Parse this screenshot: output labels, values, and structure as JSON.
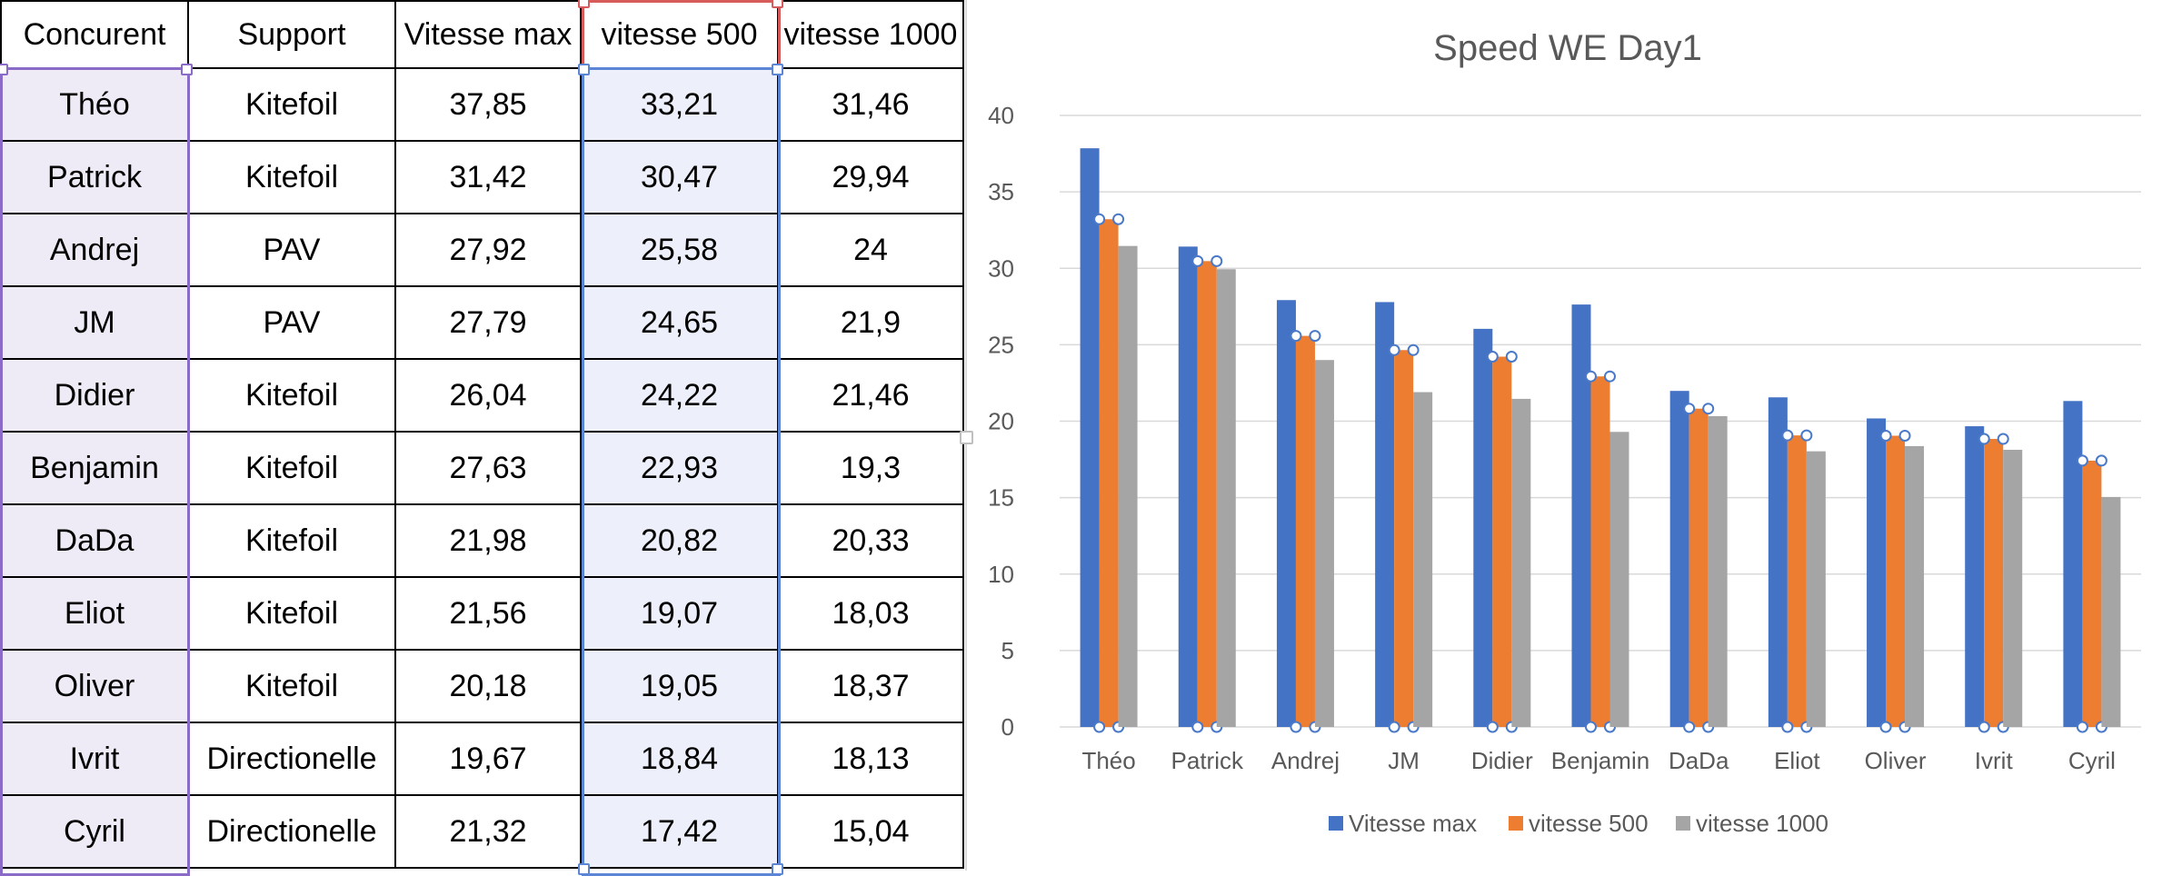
{
  "table": {
    "columns": [
      "Concurent",
      "Support",
      "Vitesse max",
      "vitesse 500",
      "vitesse 1000"
    ],
    "rows": [
      {
        "name": "Théo",
        "support": "Kitefoil",
        "vmax": "37,85",
        "v500": "33,21",
        "v1000": "31,46"
      },
      {
        "name": "Patrick",
        "support": "Kitefoil",
        "vmax": "31,42",
        "v500": "30,47",
        "v1000": "29,94"
      },
      {
        "name": "Andrej",
        "support": "PAV",
        "vmax": "27,92",
        "v500": "25,58",
        "v1000": "24"
      },
      {
        "name": "JM",
        "support": "PAV",
        "vmax": "27,79",
        "v500": "24,65",
        "v1000": "21,9"
      },
      {
        "name": "Didier",
        "support": "Kitefoil",
        "vmax": "26,04",
        "v500": "24,22",
        "v1000": "21,46"
      },
      {
        "name": "Benjamin",
        "support": "Kitefoil",
        "vmax": "27,63",
        "v500": "22,93",
        "v1000": "19,3"
      },
      {
        "name": "DaDa",
        "support": "Kitefoil",
        "vmax": "21,98",
        "v500": "20,82",
        "v1000": "20,33"
      },
      {
        "name": "Eliot",
        "support": "Kitefoil",
        "vmax": "21,56",
        "v500": "19,07",
        "v1000": "18,03"
      },
      {
        "name": "Oliver",
        "support": "Kitefoil",
        "vmax": "20,18",
        "v500": "19,05",
        "v1000": "18,37"
      },
      {
        "name": "Ivrit",
        "support": "Directionelle",
        "vmax": "19,67",
        "v500": "18,84",
        "v1000": "18,13"
      },
      {
        "name": "Cyril",
        "support": "Directionelle",
        "vmax": "21,32",
        "v500": "17,42",
        "v1000": "15,04"
      }
    ]
  },
  "colors": {
    "series_vmax": "#4472c4",
    "series_v500": "#ed7d31",
    "series_v1000": "#a5a5a5",
    "selection_purple": "#8b6bc8",
    "selection_blue": "#5b86d6",
    "selection_red": "#d85b5b",
    "gridline": "#d9d9d9",
    "title_text": "#595959",
    "axis_text": "#595959"
  },
  "chart_data": {
    "type": "bar",
    "title": "Speed WE Day1",
    "xlabel": "",
    "ylabel": "",
    "categories": [
      "Théo",
      "Patrick",
      "Andrej",
      "JM",
      "Didier",
      "Benjamin",
      "DaDa",
      "Eliot",
      "Oliver",
      "Ivrit",
      "Cyril"
    ],
    "series": [
      {
        "name": "Vitesse max",
        "values": [
          37.85,
          31.42,
          27.92,
          27.79,
          26.04,
          27.63,
          21.98,
          21.56,
          20.18,
          19.67,
          21.32
        ]
      },
      {
        "name": "vitesse 500",
        "values": [
          33.21,
          30.47,
          25.58,
          24.65,
          24.22,
          22.93,
          20.82,
          19.07,
          19.05,
          18.84,
          17.42
        ]
      },
      {
        "name": "vitesse 1000",
        "values": [
          31.46,
          29.94,
          24,
          21.9,
          21.46,
          19.3,
          20.33,
          18.03,
          18.37,
          18.13,
          15.04
        ]
      }
    ],
    "ylim": [
      0,
      40
    ],
    "yticks": [
      "0",
      "5",
      "10",
      "15",
      "20",
      "25",
      "30",
      "35",
      "40"
    ],
    "grid": true,
    "legend_position": "bottom",
    "selected_series": "vitesse 500"
  }
}
